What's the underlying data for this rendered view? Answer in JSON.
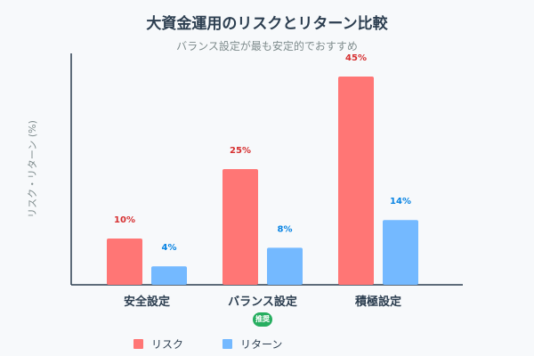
{
  "chart_data": {
    "type": "bar",
    "title": "大資金運用のリスクとリターン比較",
    "subtitle": "バランス設定が最も安定的でおすすめ",
    "ylabel": "リスク・リターン (%)",
    "ylim": [
      0,
      50
    ],
    "grid": false,
    "legend_position": "bottom",
    "categories": [
      "安全設定",
      "バランス設定",
      "積極設定"
    ],
    "series": [
      {
        "name": "リスク",
        "color": "#ff7675",
        "label_color": "#d63031",
        "values": [
          10,
          25,
          45
        ],
        "labels": [
          "10%",
          "25%",
          "45%"
        ]
      },
      {
        "name": "リターン",
        "color": "#74b9ff",
        "label_color": "#0984e3",
        "values": [
          4,
          8,
          14
        ],
        "labels": [
          "4%",
          "8%",
          "14%"
        ]
      }
    ],
    "badge": {
      "category": "バランス設定",
      "text": "推奨",
      "color": "#27ae60"
    }
  }
}
